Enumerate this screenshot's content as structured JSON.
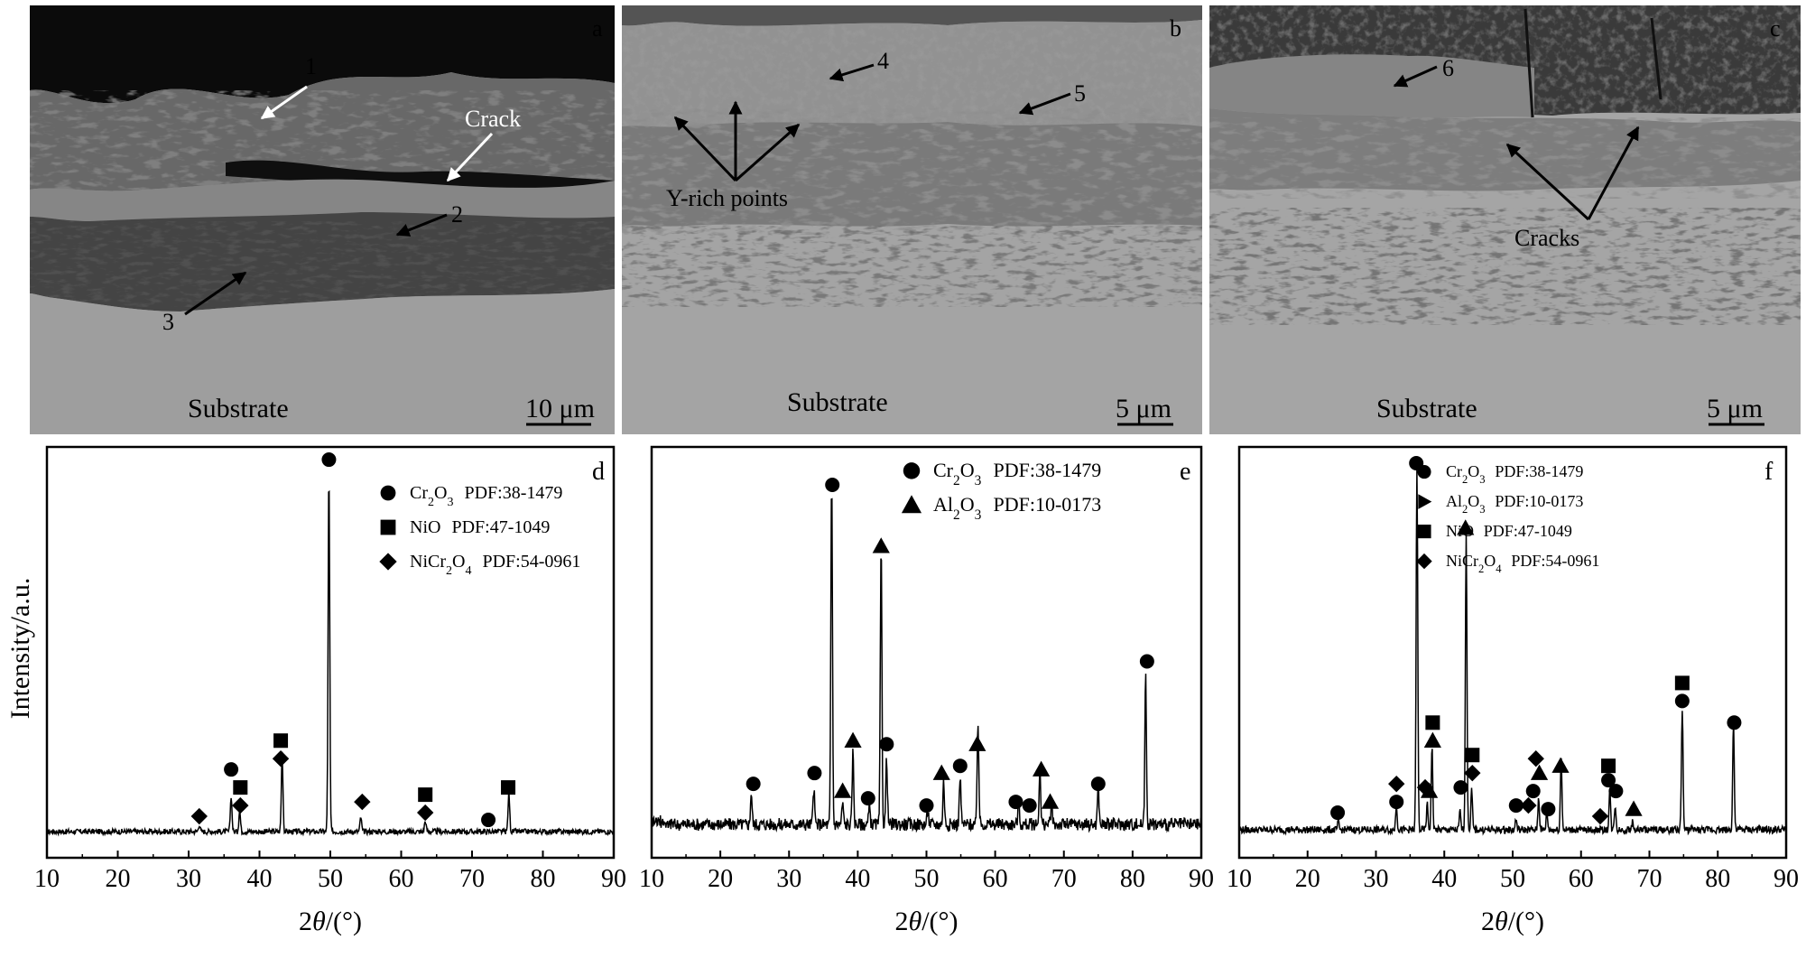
{
  "sem_panels": [
    {
      "letter": "a",
      "substrate_label": "Substrate",
      "scale_label": "10 μm",
      "labels": [
        "1",
        "Crack",
        "2",
        "3"
      ]
    },
    {
      "letter": "b",
      "substrate_label": "Substrate",
      "scale_label": "5 μm",
      "labels": [
        "4",
        "5",
        "Y-rich points"
      ]
    },
    {
      "letter": "c",
      "substrate_label": "Substrate",
      "scale_label": "5 μm",
      "labels": [
        "6",
        "Cracks"
      ]
    }
  ],
  "y_axis_label": "Intensity/a.u.",
  "x_axis_label": "2θ/(°)",
  "marker_colors": {
    "ink": "#000000",
    "grid_background": "#ffffff"
  },
  "chart_data": [
    {
      "type": "line",
      "letter": "d",
      "xlim": [
        10,
        90
      ],
      "xticks": [
        10,
        20,
        30,
        40,
        50,
        60,
        70,
        80,
        90
      ],
      "xlabel": "2θ/(°)",
      "ylabel": "Intensity/a.u.",
      "grid": false,
      "legend_position": "top-right",
      "legend": [
        {
          "marker": "circle",
          "name": "Cr2O3",
          "pdf": "PDF:38-1479"
        },
        {
          "marker": "square",
          "name": "NiO",
          "pdf": "PDF:47-1049"
        },
        {
          "marker": "diamond",
          "name": "NiCr2O4",
          "pdf": "PDF:54-0961"
        }
      ],
      "noise": 3,
      "baseline": 3,
      "peaks": [
        {
          "x": 31.5,
          "h": 0.02
        },
        {
          "x": 36.0,
          "h": 0.1
        },
        {
          "x": 37.2,
          "h": 0.06
        },
        {
          "x": 43.2,
          "h": 0.22
        },
        {
          "x": 49.8,
          "h": 1.0
        },
        {
          "x": 54.3,
          "h": 0.04
        },
        {
          "x": 63.4,
          "h": 0.03
        },
        {
          "x": 75.2,
          "h": 0.11
        }
      ],
      "markers": [
        {
          "type": "diamond",
          "x": 31.5,
          "y": 0.05
        },
        {
          "type": "circle",
          "x": 36.0,
          "y": 0.18
        },
        {
          "type": "square",
          "x": 37.3,
          "y": 0.13
        },
        {
          "type": "diamond",
          "x": 37.3,
          "y": 0.08
        },
        {
          "type": "square",
          "x": 43.0,
          "y": 0.26
        },
        {
          "type": "diamond",
          "x": 43.0,
          "y": 0.21
        },
        {
          "type": "circle",
          "x": 49.8,
          "y": 1.04
        },
        {
          "type": "diamond",
          "x": 54.5,
          "y": 0.09
        },
        {
          "type": "square",
          "x": 63.4,
          "y": 0.11
        },
        {
          "type": "diamond",
          "x": 63.4,
          "y": 0.06
        },
        {
          "type": "circle",
          "x": 72.3,
          "y": 0.04
        },
        {
          "type": "square",
          "x": 75.1,
          "y": 0.13
        }
      ]
    },
    {
      "type": "line",
      "letter": "e",
      "xlim": [
        10,
        90
      ],
      "xticks": [
        10,
        20,
        30,
        40,
        50,
        60,
        70,
        80,
        90
      ],
      "xlabel": "2θ/(°)",
      "ylabel": "Intensity/a.u.",
      "grid": false,
      "legend_position": "top-right",
      "legend": [
        {
          "marker": "circle",
          "name": "Cr2O3",
          "pdf": "PDF:38-1479"
        },
        {
          "marker": "triangle",
          "name": "Al2O3",
          "pdf": "PDF:10-0173"
        }
      ],
      "noise": 7,
      "baseline": 11,
      "peaks": [
        {
          "x": 24.5,
          "h": 0.09
        },
        {
          "x": 33.6,
          "h": 0.1
        },
        {
          "x": 36.2,
          "h": 0.96
        },
        {
          "x": 37.8,
          "h": 0.06
        },
        {
          "x": 39.3,
          "h": 0.2
        },
        {
          "x": 41.7,
          "h": 0.05
        },
        {
          "x": 43.4,
          "h": 0.77
        },
        {
          "x": 44.2,
          "h": 0.18
        },
        {
          "x": 50.2,
          "h": 0.04
        },
        {
          "x": 52.5,
          "h": 0.12
        },
        {
          "x": 54.9,
          "h": 0.13
        },
        {
          "x": 57.5,
          "h": 0.29
        },
        {
          "x": 63.4,
          "h": 0.06
        },
        {
          "x": 66.5,
          "h": 0.15
        },
        {
          "x": 68.2,
          "h": 0.05
        },
        {
          "x": 75.0,
          "h": 0.11
        },
        {
          "x": 81.9,
          "h": 0.42
        }
      ],
      "markers": [
        {
          "type": "circle",
          "x": 24.8,
          "y": 0.14
        },
        {
          "type": "circle",
          "x": 33.7,
          "y": 0.17
        },
        {
          "type": "circle",
          "x": 36.3,
          "y": 0.97
        },
        {
          "type": "triangle",
          "x": 37.8,
          "y": 0.12
        },
        {
          "type": "triangle",
          "x": 39.3,
          "y": 0.26
        },
        {
          "type": "circle",
          "x": 41.5,
          "y": 0.1
        },
        {
          "type": "triangle",
          "x": 43.4,
          "y": 0.8
        },
        {
          "type": "circle",
          "x": 44.2,
          "y": 0.25
        },
        {
          "type": "circle",
          "x": 50.0,
          "y": 0.08
        },
        {
          "type": "triangle",
          "x": 52.2,
          "y": 0.17
        },
        {
          "type": "circle",
          "x": 54.9,
          "y": 0.19
        },
        {
          "type": "triangle",
          "x": 57.4,
          "y": 0.25
        },
        {
          "type": "circle",
          "x": 63.0,
          "y": 0.09
        },
        {
          "type": "circle",
          "x": 65.0,
          "y": 0.08
        },
        {
          "type": "triangle",
          "x": 66.7,
          "y": 0.18
        },
        {
          "type": "triangle",
          "x": 68.0,
          "y": 0.09
        },
        {
          "type": "circle",
          "x": 75.0,
          "y": 0.14
        },
        {
          "type": "circle",
          "x": 82.1,
          "y": 0.48
        }
      ]
    },
    {
      "type": "line",
      "letter": "f",
      "xlim": [
        10,
        90
      ],
      "xticks": [
        10,
        20,
        30,
        40,
        50,
        60,
        70,
        80,
        90
      ],
      "xlabel": "2θ/(°)",
      "ylabel": "Intensity/a.u.",
      "grid": false,
      "legend_position": "top-right",
      "legend": [
        {
          "marker": "circle",
          "name": "Cr2O3",
          "pdf": "PDF:38-1479"
        },
        {
          "marker": "right-triangle",
          "name": "Al2O3",
          "pdf": "PDF:10-0173"
        },
        {
          "marker": "square",
          "name": "NiO",
          "pdf": "PDF:47-1049"
        },
        {
          "marker": "diamond",
          "name": "NiCr2O4",
          "pdf": "PDF:54-0961"
        }
      ],
      "noise": 4,
      "baseline": 5,
      "peaks": [
        {
          "x": 24.5,
          "h": 0.02
        },
        {
          "x": 33.0,
          "h": 0.07
        },
        {
          "x": 36.0,
          "h": 1.0
        },
        {
          "x": 37.5,
          "h": 0.07
        },
        {
          "x": 38.2,
          "h": 0.23
        },
        {
          "x": 42.3,
          "h": 0.05
        },
        {
          "x": 43.2,
          "h": 0.83
        },
        {
          "x": 44.0,
          "h": 0.11
        },
        {
          "x": 50.5,
          "h": 0.03
        },
        {
          "x": 53.8,
          "h": 0.09
        },
        {
          "x": 55.0,
          "h": 0.05
        },
        {
          "x": 57.1,
          "h": 0.2
        },
        {
          "x": 64.2,
          "h": 0.11
        },
        {
          "x": 65.0,
          "h": 0.07
        },
        {
          "x": 67.5,
          "h": 0.02
        },
        {
          "x": 74.8,
          "h": 0.34
        },
        {
          "x": 82.3,
          "h": 0.3
        }
      ],
      "markers": [
        {
          "type": "circle",
          "x": 24.4,
          "y": 0.06
        },
        {
          "type": "diamond",
          "x": 33.0,
          "y": 0.14
        },
        {
          "type": "circle",
          "x": 33.0,
          "y": 0.09
        },
        {
          "type": "circle",
          "x": 35.9,
          "y": 1.03
        },
        {
          "type": "diamond",
          "x": 37.2,
          "y": 0.13
        },
        {
          "type": "triangle",
          "x": 37.8,
          "y": 0.12
        },
        {
          "type": "square",
          "x": 38.3,
          "y": 0.31
        },
        {
          "type": "triangle",
          "x": 38.3,
          "y": 0.26
        },
        {
          "type": "circle",
          "x": 42.4,
          "y": 0.13
        },
        {
          "type": "triangle",
          "x": 43.1,
          "y": 0.85
        },
        {
          "type": "square",
          "x": 44.1,
          "y": 0.22
        },
        {
          "type": "diamond",
          "x": 44.1,
          "y": 0.17
        },
        {
          "type": "circle",
          "x": 50.5,
          "y": 0.08
        },
        {
          "type": "diamond",
          "x": 52.3,
          "y": 0.08
        },
        {
          "type": "circle",
          "x": 53.0,
          "y": 0.12
        },
        {
          "type": "diamond",
          "x": 53.4,
          "y": 0.21
        },
        {
          "type": "triangle",
          "x": 53.9,
          "y": 0.17
        },
        {
          "type": "circle",
          "x": 55.2,
          "y": 0.07
        },
        {
          "type": "triangle",
          "x": 57.0,
          "y": 0.19
        },
        {
          "type": "diamond",
          "x": 62.8,
          "y": 0.05
        },
        {
          "type": "square",
          "x": 64.0,
          "y": 0.19
        },
        {
          "type": "circle",
          "x": 64.0,
          "y": 0.15
        },
        {
          "type": "circle",
          "x": 65.1,
          "y": 0.12
        },
        {
          "type": "triangle",
          "x": 67.7,
          "y": 0.07
        },
        {
          "type": "square",
          "x": 74.8,
          "y": 0.42
        },
        {
          "type": "circle",
          "x": 74.8,
          "y": 0.37
        },
        {
          "type": "circle",
          "x": 82.4,
          "y": 0.31
        }
      ]
    }
  ]
}
